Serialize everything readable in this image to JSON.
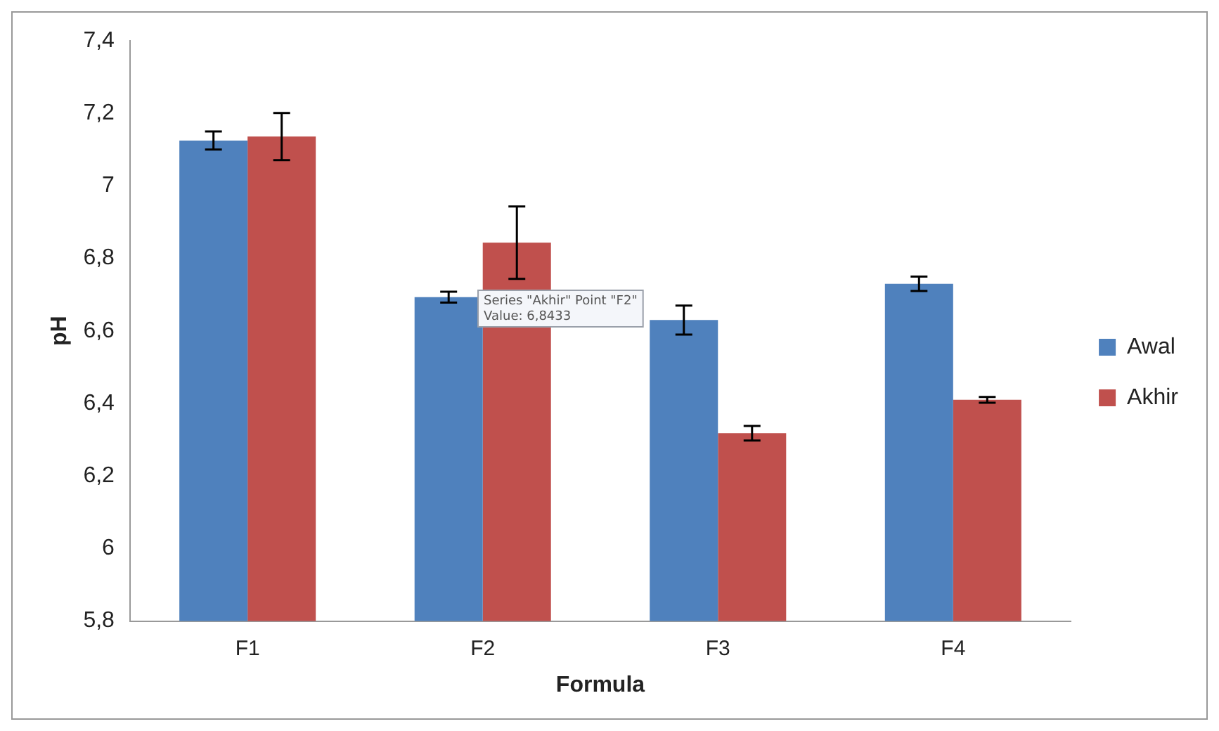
{
  "chart_data": {
    "type": "bar",
    "xlabel": "Formula",
    "ylabel": "pH",
    "categories": [
      "F1",
      "F2",
      "F3",
      "F4"
    ],
    "series": [
      {
        "name": "Awal",
        "color": "#4f81bd",
        "values": [
          7.125,
          6.693,
          6.63,
          6.73
        ],
        "errors": [
          0.025,
          0.015,
          0.04,
          0.02
        ]
      },
      {
        "name": "Akhir",
        "color": "#c0504d",
        "values": [
          7.136,
          6.8433,
          6.318,
          6.41
        ],
        "errors": [
          0.065,
          0.1,
          0.02,
          0.008
        ]
      }
    ],
    "ylim": [
      5.8,
      7.4
    ],
    "yticks": [
      {
        "value": 5.8,
        "label": "5,8"
      },
      {
        "value": 6,
        "label": "6"
      },
      {
        "value": 6.2,
        "label": "6,2"
      },
      {
        "value": 6.4,
        "label": "6,4"
      },
      {
        "value": 6.6,
        "label": "6,6"
      },
      {
        "value": 6.8,
        "label": "6,8"
      },
      {
        "value": 7,
        "label": "7"
      },
      {
        "value": 7.2,
        "label": "7,2"
      },
      {
        "value": 7.4,
        "label": "7,4"
      }
    ],
    "annotations": [
      "Series \"Akhir\" Point \"F2\"\nValue: 6,8433"
    ],
    "grid": false,
    "legend": "right"
  }
}
